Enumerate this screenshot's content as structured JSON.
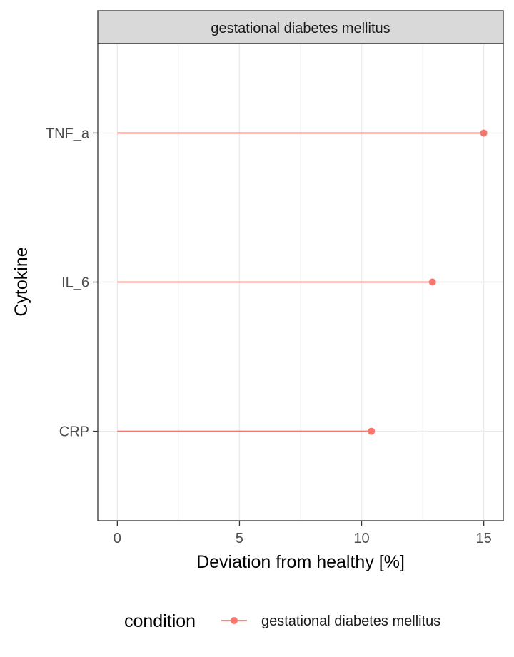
{
  "chart_data": {
    "type": "lollipop",
    "facet_label": "gestational diabetes mellitus",
    "xlabel": "Deviation from healthy [%]",
    "ylabel": "Cytokine",
    "xlim": [
      -0.8,
      15.8
    ],
    "x_ticks": [
      0,
      5,
      10,
      15
    ],
    "categories": [
      "CRP",
      "IL_6",
      "TNF_a"
    ],
    "series": [
      {
        "name": "gestational diabetes mellitus",
        "values": [
          10.4,
          12.9,
          15.0
        ]
      }
    ],
    "series_color": "#F8766D",
    "grid": true,
    "legend": {
      "title": "condition",
      "position": "bottom",
      "entries": [
        "gestational diabetes mellitus"
      ]
    }
  }
}
